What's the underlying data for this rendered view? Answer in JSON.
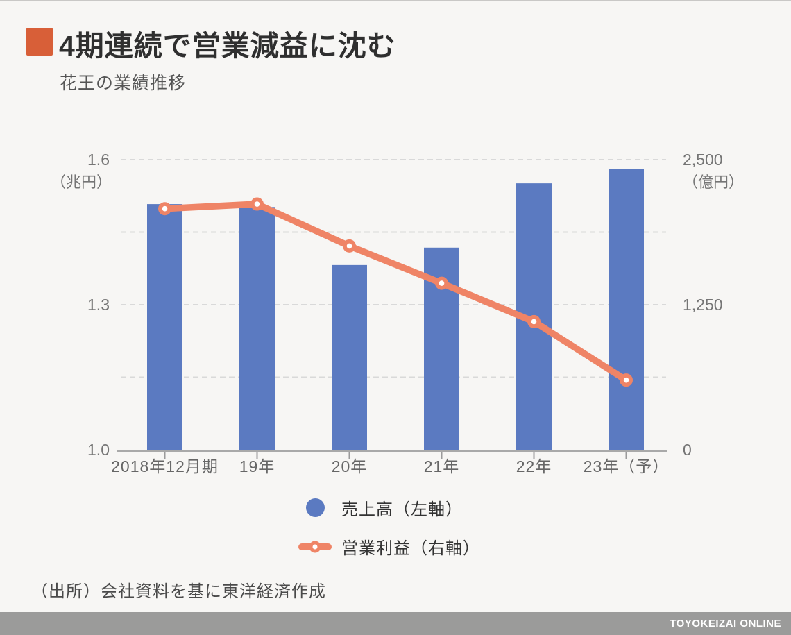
{
  "header": {
    "title": "4期連続で営業減益に沈む",
    "subtitle": "花王の業績推移"
  },
  "legend": {
    "items": [
      {
        "label": "売上高（左軸）",
        "swatch": "bar-circle-swatch"
      },
      {
        "label": "営業利益（右軸）",
        "swatch": "line-marker-swatch"
      }
    ]
  },
  "source": "（出所）会社資料を基に東洋経済作成",
  "footer": {
    "brand": "TOYOKEIZAI ONLINE"
  },
  "colors": {
    "accent_square": "#d85f38",
    "bar": "#5b7ac1",
    "line": "#ef8466",
    "marker_core": "#ffffff",
    "gridline": "#d9d9d9",
    "axis_line": "#a9a9a9",
    "tick": "#9b9b9b",
    "axis_text": "#757575",
    "x_label_text": "#666666",
    "footer_bg": "#9b9b9a"
  },
  "chart_data": {
    "type": "bar+line dual-axis combo",
    "title": "4期連続で営業減益に沈む",
    "subtitle": "花王の業績推移",
    "categories": [
      "2018年12月期",
      "19年",
      "20年",
      "21年",
      "22年",
      "23年（予）"
    ],
    "series": [
      {
        "name": "売上高（左軸）",
        "type": "bar",
        "axis": "left",
        "unit": "兆円",
        "values": [
          1.508,
          1.502,
          1.382,
          1.418,
          1.551,
          1.58
        ]
      },
      {
        "name": "営業利益（右軸）",
        "type": "line",
        "axis": "right",
        "unit": "億円",
        "values": [
          2077,
          2117,
          1756,
          1435,
          1104,
          600
        ]
      }
    ],
    "left_axis": {
      "unit_label": "（兆円）",
      "min": 1.0,
      "max": 1.6,
      "ticks": [
        1.6,
        1.3,
        1.0
      ],
      "tick_labels": [
        "1.6",
        "1.3",
        "1.0"
      ],
      "gridline_values": [
        1.6,
        1.45,
        1.3,
        1.15
      ]
    },
    "right_axis": {
      "unit_label": "（億円）",
      "min": 0,
      "max": 2500,
      "ticks": [
        2500,
        1250,
        0
      ],
      "tick_labels": [
        "2,500",
        "1,250",
        "0"
      ]
    },
    "grid": "dashed horizontal gridlines, solid bottom axis",
    "legend_position": "bottom-center"
  }
}
